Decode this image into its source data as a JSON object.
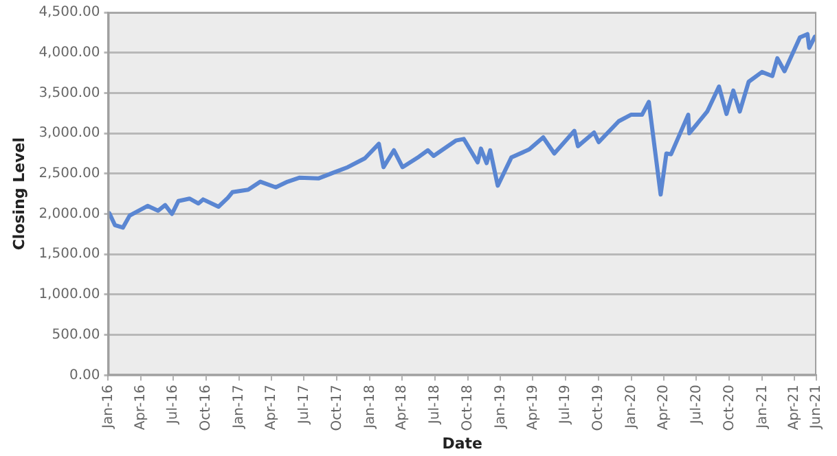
{
  "chart_data": {
    "type": "line",
    "xlabel": "Date",
    "ylabel": "Closing Level",
    "x": [
      "2016-01-04",
      "2016-01-20",
      "2016-02-11",
      "2016-03-01",
      "2016-04-20",
      "2016-05-19",
      "2016-06-08",
      "2016-06-27",
      "2016-07-15",
      "2016-08-15",
      "2016-09-09",
      "2016-09-22",
      "2016-11-04",
      "2016-11-30",
      "2016-12-13",
      "2017-01-26",
      "2017-03-01",
      "2017-04-13",
      "2017-05-16",
      "2017-06-19",
      "2017-08-10",
      "2017-09-20",
      "2017-10-31",
      "2017-12-18",
      "2018-01-26",
      "2018-02-08",
      "2018-03-09",
      "2018-04-02",
      "2018-05-18",
      "2018-06-12",
      "2018-06-28",
      "2018-08-29",
      "2018-09-20",
      "2018-10-29",
      "2018-11-07",
      "2018-11-23",
      "2018-12-03",
      "2018-12-24",
      "2019-01-31",
      "2019-03-22",
      "2019-04-30",
      "2019-05-31",
      "2019-07-26",
      "2019-08-05",
      "2019-09-19",
      "2019-10-02",
      "2019-11-27",
      "2019-12-31",
      "2020-01-31",
      "2020-02-19",
      "2020-03-23",
      "2020-04-08",
      "2020-04-21",
      "2020-06-08",
      "2020-06-11",
      "2020-07-31",
      "2020-09-02",
      "2020-09-23",
      "2020-10-12",
      "2020-10-30",
      "2020-11-24",
      "2020-12-31",
      "2021-01-29",
      "2021-02-12",
      "2021-03-04",
      "2021-04-16",
      "2021-05-07",
      "2021-05-12",
      "2021-05-28",
      "2021-06-01"
    ],
    "series": [
      {
        "color": "#5a86d2",
        "values": [
          2010,
          1860,
          1830,
          1980,
          2100,
          2040,
          2110,
          2000,
          2160,
          2190,
          2130,
          2180,
          2090,
          2200,
          2270,
          2300,
          2400,
          2330,
          2400,
          2450,
          2440,
          2510,
          2580,
          2690,
          2870,
          2580,
          2790,
          2580,
          2710,
          2790,
          2720,
          2910,
          2930,
          2640,
          2810,
          2630,
          2790,
          2350,
          2700,
          2800,
          2950,
          2750,
          3030,
          2840,
          3010,
          2890,
          3150,
          3230,
          3230,
          3390,
          2240,
          2750,
          2740,
          3230,
          3000,
          3270,
          3580,
          3240,
          3530,
          3270,
          3640,
          3760,
          3710,
          3930,
          3770,
          4190,
          4230,
          4060,
          4200,
          4200
        ]
      }
    ],
    "xlim": [
      "2016-01-01",
      "2021-06-01"
    ],
    "xticks": [
      {
        "value": "2016-01-01",
        "label": "Jan-16"
      },
      {
        "value": "2016-04-01",
        "label": "Apr-16"
      },
      {
        "value": "2016-07-01",
        "label": "Jul-16"
      },
      {
        "value": "2016-10-01",
        "label": "Oct-16"
      },
      {
        "value": "2017-01-01",
        "label": "Jan-17"
      },
      {
        "value": "2017-04-01",
        "label": "Apr-17"
      },
      {
        "value": "2017-07-01",
        "label": "Jul-17"
      },
      {
        "value": "2017-10-01",
        "label": "Oct-17"
      },
      {
        "value": "2018-01-01",
        "label": "Jan-18"
      },
      {
        "value": "2018-04-01",
        "label": "Apr-18"
      },
      {
        "value": "2018-07-01",
        "label": "Jul-18"
      },
      {
        "value": "2018-10-01",
        "label": "Oct-18"
      },
      {
        "value": "2019-01-01",
        "label": "Jan-19"
      },
      {
        "value": "2019-04-01",
        "label": "Apr-19"
      },
      {
        "value": "2019-07-01",
        "label": "Jul-19"
      },
      {
        "value": "2019-10-01",
        "label": "Oct-19"
      },
      {
        "value": "2020-01-01",
        "label": "Jan-20"
      },
      {
        "value": "2020-04-01",
        "label": "Apr-20"
      },
      {
        "value": "2020-07-01",
        "label": "Jul-20"
      },
      {
        "value": "2020-10-01",
        "label": "Oct-20"
      },
      {
        "value": "2021-01-01",
        "label": "Jan-21"
      },
      {
        "value": "2021-04-01",
        "label": "Apr-21"
      },
      {
        "value": "2021-06-01",
        "label": "Jun-21"
      }
    ],
    "ylim": [
      0,
      4500
    ],
    "yticks": [
      {
        "value": 0,
        "label": "0.00"
      },
      {
        "value": 500,
        "label": "500.00"
      },
      {
        "value": 1000,
        "label": "1,000.00"
      },
      {
        "value": 1500,
        "label": "1,500.00"
      },
      {
        "value": 2000,
        "label": "2,000.00"
      },
      {
        "value": 2500,
        "label": "2,500.00"
      },
      {
        "value": 3000,
        "label": "3,000.00"
      },
      {
        "value": 3500,
        "label": "3,500.00"
      },
      {
        "value": 4000,
        "label": "4,000.00"
      },
      {
        "value": 4500,
        "label": "4,500.00"
      }
    ],
    "grid": "y",
    "legend": false,
    "marker": "none",
    "line_style": "solid"
  }
}
